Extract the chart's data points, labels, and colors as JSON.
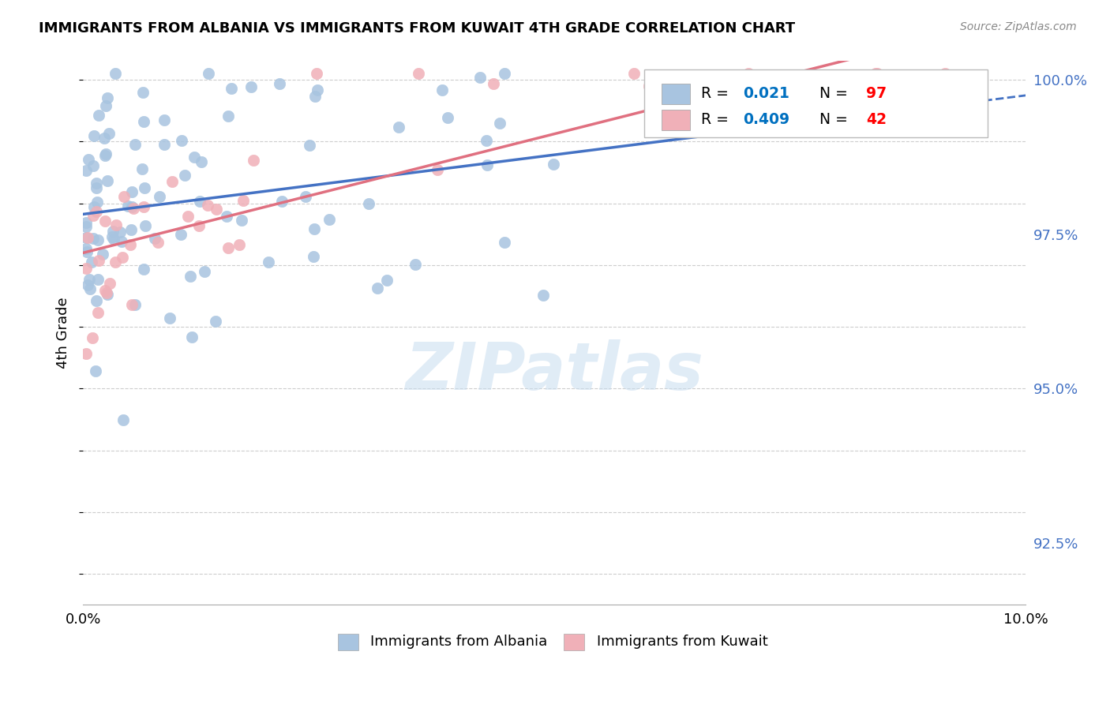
{
  "title": "IMMIGRANTS FROM ALBANIA VS IMMIGRANTS FROM KUWAIT 4TH GRADE CORRELATION CHART",
  "source": "Source: ZipAtlas.com",
  "ylabel": "4th Grade",
  "watermark": "ZIPatlas",
  "x_min": 0.0,
  "x_max": 0.1,
  "y_min": 0.915,
  "y_max": 1.003,
  "y_ticks": [
    0.925,
    0.95,
    0.975,
    1.0
  ],
  "y_tick_labels": [
    "92.5%",
    "95.0%",
    "97.5%",
    "100.0%"
  ],
  "albania_R": 0.021,
  "albania_N": 97,
  "kuwait_R": 0.409,
  "kuwait_N": 42,
  "albania_color": "#a8c4e0",
  "kuwait_color": "#f0b0b8",
  "albania_line_color": "#4472c4",
  "kuwait_line_color": "#e07080",
  "legend_r_color": "#0070c0",
  "legend_n_color": "#ff0000",
  "tick_color": "#4472c4"
}
